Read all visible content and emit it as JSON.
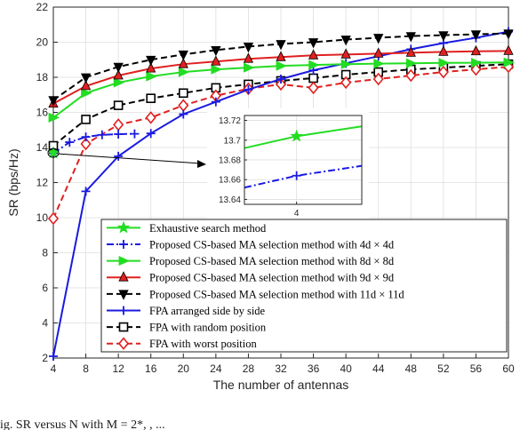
{
  "chart_data": {
    "type": "line",
    "xlabel": "The number of antennas",
    "ylabel": "SR (bps/Hz)",
    "xlim": [
      4,
      60
    ],
    "ylim": [
      2,
      22
    ],
    "xticks": [
      4,
      8,
      12,
      16,
      20,
      24,
      28,
      32,
      36,
      40,
      44,
      48,
      52,
      56,
      60
    ],
    "yticks": [
      2,
      4,
      6,
      8,
      10,
      12,
      14,
      16,
      18,
      20,
      22
    ],
    "grid": true,
    "legend_position": "bottom-right",
    "series": [
      {
        "name": "Exhaustive search method",
        "color": "#22dd22",
        "dash": "solid",
        "marker": "star",
        "x": [
          4
        ],
        "y": [
          13.7
        ]
      },
      {
        "name": "Proposed CS-based MA selection method with 4d × 4d",
        "color": "#1a1ae0",
        "dash": "dashdot",
        "marker": "plus",
        "x": [
          4,
          6,
          8,
          10,
          12,
          14
        ],
        "y": [
          13.665,
          14.3,
          14.6,
          14.72,
          14.76,
          14.78
        ]
      },
      {
        "name": "Proposed CS-based MA selection method with 8d × 8d",
        "color": "#22dd22",
        "dash": "solid",
        "marker": "triangle-right",
        "x": [
          4,
          8,
          12,
          16,
          20,
          24,
          28,
          32,
          36,
          40,
          44,
          48,
          52,
          56,
          60
        ],
        "y": [
          15.7,
          17.1,
          17.7,
          18.05,
          18.3,
          18.45,
          18.55,
          18.65,
          18.7,
          18.75,
          18.78,
          18.8,
          18.82,
          18.83,
          18.85
        ]
      },
      {
        "name": "Proposed CS-based MA selection method with 9d × 9d",
        "color": "#e02020",
        "dash": "solid",
        "marker": "triangle-up",
        "x": [
          4,
          8,
          12,
          16,
          20,
          24,
          28,
          32,
          36,
          40,
          44,
          48,
          52,
          56,
          60
        ],
        "y": [
          16.5,
          17.5,
          18.1,
          18.5,
          18.75,
          18.9,
          19.05,
          19.15,
          19.25,
          19.3,
          19.35,
          19.4,
          19.45,
          19.48,
          19.5
        ]
      },
      {
        "name": "Proposed CS-based MA selection method with 11d × 11d",
        "color": "#000000",
        "dash": "dashed",
        "marker": "triangle-down",
        "x": [
          4,
          8,
          12,
          16,
          20,
          24,
          28,
          32,
          36,
          40,
          44,
          48,
          52,
          56,
          60
        ],
        "y": [
          16.7,
          18.0,
          18.6,
          19.0,
          19.3,
          19.55,
          19.75,
          19.9,
          20.0,
          20.15,
          20.25,
          20.35,
          20.4,
          20.45,
          20.5
        ]
      },
      {
        "name": "FPA arranged side by side",
        "color": "#1a1ae0",
        "dash": "solid",
        "marker": "plus",
        "x": [
          4,
          8,
          12,
          16,
          20,
          24,
          28,
          32,
          36,
          40,
          44,
          48,
          52,
          56,
          60
        ],
        "y": [
          2.1,
          11.5,
          13.5,
          14.8,
          15.9,
          16.6,
          17.3,
          17.9,
          18.4,
          18.8,
          19.2,
          19.6,
          19.95,
          20.25,
          20.6
        ]
      },
      {
        "name": "FPA with random position",
        "color": "#000000",
        "dash": "dashed",
        "marker": "square",
        "x": [
          4,
          8,
          12,
          16,
          20,
          24,
          28,
          32,
          36,
          40,
          44,
          48,
          52,
          56,
          60
        ],
        "y": [
          14.1,
          15.6,
          16.4,
          16.8,
          17.1,
          17.4,
          17.6,
          17.8,
          17.95,
          18.15,
          18.3,
          18.45,
          18.55,
          18.65,
          18.75
        ]
      },
      {
        "name": "FPA with worst position",
        "color": "#e02020",
        "dash": "dashed",
        "marker": "diamond",
        "x": [
          4,
          8,
          12,
          16,
          20,
          24,
          28,
          32,
          36,
          40,
          44,
          48,
          52,
          56,
          60
        ],
        "y": [
          9.95,
          14.2,
          15.3,
          15.7,
          16.4,
          16.95,
          17.35,
          17.6,
          17.4,
          17.7,
          17.9,
          18.1,
          18.3,
          18.45,
          18.6
        ]
      }
    ],
    "inset": {
      "xlim": [
        3.6,
        4.5
      ],
      "ylim": [
        13.635,
        13.725
      ],
      "xticks": [
        4
      ],
      "yticks": [
        13.64,
        13.66,
        13.68,
        13.7,
        13.72
      ],
      "ytick_labels": [
        "13.64",
        "13.66",
        "13.68",
        "13.7",
        "13.72"
      ],
      "series": [
        {
          "color": "#22dd22",
          "dash": "solid",
          "marker": "star",
          "x": [
            3.6,
            4.0,
            4.5
          ],
          "y": [
            13.692,
            13.704,
            13.714
          ]
        },
        {
          "color": "#1a1ae0",
          "dash": "dashdot",
          "marker": "plus",
          "x": [
            3.6,
            4.0,
            4.5
          ],
          "y": [
            13.652,
            13.664,
            13.674
          ]
        }
      ]
    }
  },
  "caption_fragment": "ig. SR versus N with M = 2*, , ..."
}
